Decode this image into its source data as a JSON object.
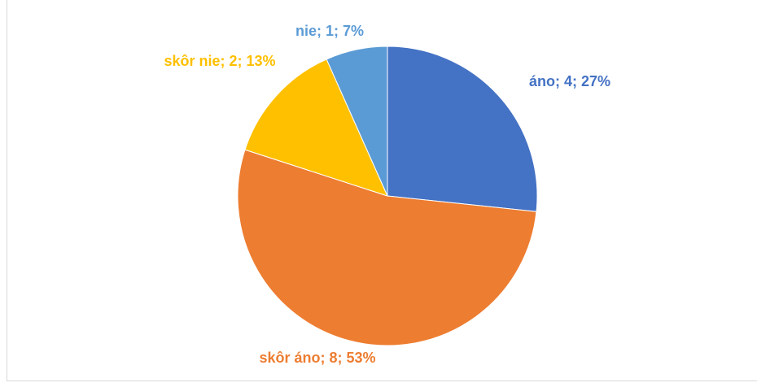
{
  "chart_data": {
    "type": "pie",
    "categories": [
      "áno",
      "skôr áno",
      "skôr nie",
      "nie"
    ],
    "values": [
      4,
      8,
      2,
      1
    ],
    "value_labels": [
      "áno; 4; 27%",
      "skôr áno; 8; 53%",
      "skôr nie; 2; 13%",
      "nie; 1; 7%"
    ],
    "colors": [
      "#4472c4",
      "#ed7d31",
      "#ffc000",
      "#5b9bd5"
    ]
  }
}
